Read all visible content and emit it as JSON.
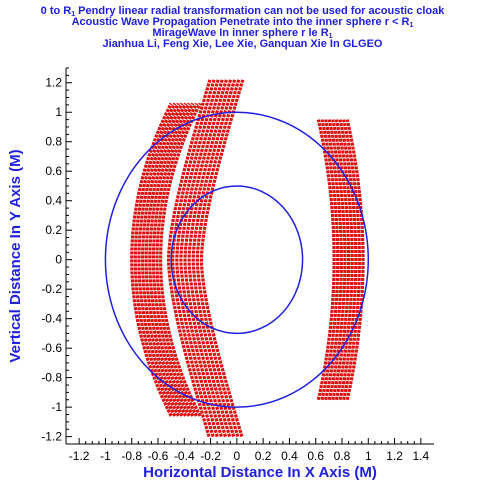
{
  "title_lines": [
    [
      "0 to R",
      "1",
      " Pendry linear radial transformation can not be used for acoustic cloak"
    ],
    [
      "Acoustic Wave Propagation Penetrate into the inner sphere r < R",
      "1",
      ""
    ],
    [
      "MirageWave  In inner sphere r le R",
      "1",
      ""
    ],
    [
      "Jianhua Li, Feng Xie, Lee Xie, Ganquan Xie In GLGEO",
      "",
      ""
    ]
  ],
  "colors": {
    "title": "#2020e0",
    "axis_label": "#2020e0",
    "circle": "#2020e0",
    "wave": "#dd1010",
    "axis": "#000000"
  },
  "chart_data": {
    "type": "scatter",
    "xlabel": "Horizontal Distance In X Axis (M)",
    "ylabel": "Vertical Distance In Y Axis (M)",
    "xlim": [
      -1.3,
      1.5
    ],
    "ylim": [
      -1.25,
      1.3
    ],
    "x_ticks": [
      "-1.2",
      "-1",
      "-0.8",
      "-0.6",
      "-0.4",
      "-0.2",
      "0",
      "0.2",
      "0.4",
      "0.6",
      "0.8",
      "1",
      "1.2",
      "1.4"
    ],
    "y_ticks": [
      "1.2",
      "1",
      "0.8",
      "0.6",
      "0.4",
      "0.2",
      "0",
      "-0.2",
      "-0.4",
      "-0.6",
      "-0.8",
      "-1",
      "-1.2"
    ],
    "grid": false,
    "circles": [
      {
        "cx": 0,
        "cy": 0,
        "r": 1.0
      },
      {
        "cx": 0,
        "cy": 0,
        "r": 0.5
      }
    ],
    "wavefront_bands": [
      {
        "x_at_center": [
          -0.8,
          -0.58
        ],
        "y_range": [
          -1.06,
          1.06
        ],
        "bulge": 0.3
      },
      {
        "x_at_center": [
          -0.52,
          -0.27
        ],
        "y_range": [
          -1.2,
          1.22
        ],
        "bulge": 0.42
      },
      {
        "x_at_center": [
          0.74,
          0.96
        ],
        "y_range": [
          -0.95,
          0.95
        ],
        "bulge": -0.12
      }
    ]
  }
}
